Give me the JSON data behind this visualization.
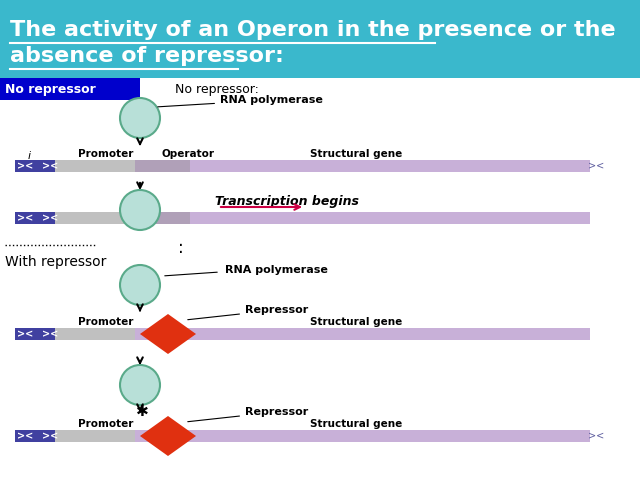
{
  "title_line1": "The activity of an Operon in the presence or the",
  "title_line2": "absence of repressor:",
  "title_bg": "#3ab8cc",
  "title_color": "#ffffff",
  "title_fontsize": 16,
  "no_repressor_label": "No repressor",
  "no_repressor_bg": "#0000cc",
  "no_repressor_color": "#ffffff",
  "with_repressor_label": "With repressor",
  "no_rep_subtitle": "No repressor:",
  "rna_pol_label": "RNA polymerase",
  "transcription_label": "Transcription begins",
  "repressor_label": "Repressor",
  "promoter_label": "Promoter",
  "operator_label": "Operator",
  "structural_gene_label": "Structural gene",
  "i_label": "i",
  "circle_fill": "#b8e0d8",
  "circle_edge": "#5aaa8a",
  "diamond_fill": "#e03010",
  "bar_purple_light": "#c8b0d8",
  "bar_gray": "#c0c0c0",
  "bar_op_gray": "#b0a0b8",
  "bar_dark_blue": "#4040a0",
  "arrow_color": "#cc0044"
}
